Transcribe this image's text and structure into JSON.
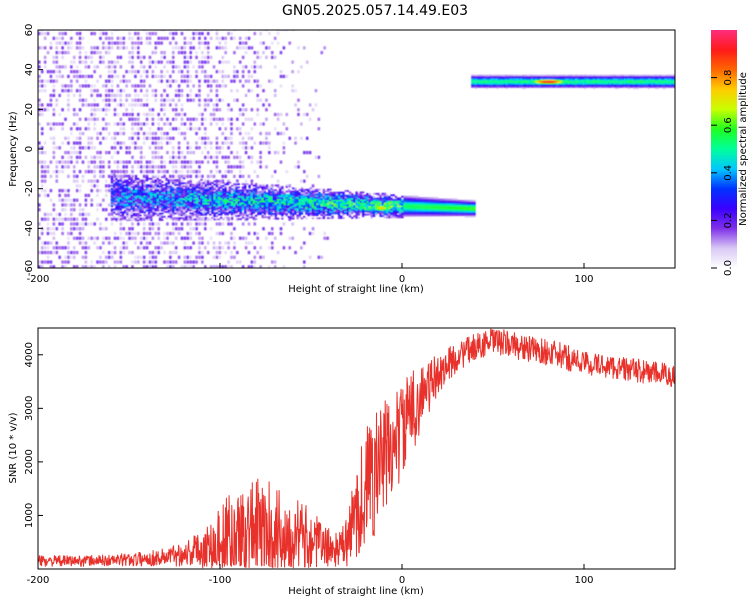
{
  "figure_title": "GN05.2025.057.14.49.E03",
  "colormap": {
    "stops": [
      "#ffffff",
      "#d8c8f4",
      "#7e2fe8",
      "#3a00ff",
      "#0033ff",
      "#00c8ff",
      "#00ff9a",
      "#20ff20",
      "#c8ff00",
      "#ffcc00",
      "#ff6600",
      "#ff1a1a",
      "#ff2d7e"
    ]
  },
  "chart_data": [
    {
      "type": "heatmap",
      "title": "",
      "xlabel": "Height of straight line (km)",
      "ylabel": "Frequency (Hz)",
      "xlim": [
        -200,
        150
      ],
      "ylim": [
        -60,
        60
      ],
      "x_ticks": [
        -200,
        -100,
        0,
        100
      ],
      "y_ticks": [
        -60,
        -40,
        -20,
        0,
        20,
        40,
        60
      ],
      "grid": false,
      "colorbar": {
        "label": "Normalized spectral amplitude",
        "range": [
          0.0,
          1.0
        ],
        "ticks": [
          "0.0",
          "0.2",
          "0.4",
          "0.6",
          "0.8"
        ]
      },
      "features": [
        {
          "description": "diffuse low-amplitude noise",
          "x_range": [
            -200,
            -110
          ],
          "freq_range": [
            -60,
            60
          ],
          "amplitude": 0.12
        },
        {
          "description": "main signal band",
          "x_start": -160,
          "x_end": 40,
          "freq_start": -24,
          "freq_end": -30,
          "amplitude_start": 0.3,
          "amplitude_end": 0.6
        },
        {
          "description": "upper signal band",
          "x_start": 38,
          "x_end": 150,
          "freq": 34,
          "amplitude": 0.55
        },
        {
          "description": "peak amplitude",
          "x": 80,
          "freq": 34,
          "amplitude": 0.95
        },
        {
          "description": "peak amplitude",
          "x": -12,
          "freq": -30,
          "amplitude": 0.85
        }
      ]
    },
    {
      "type": "line",
      "title": "",
      "xlabel": "Height of straight line (km)",
      "ylabel": "SNR (10 * v/v)",
      "xlim": [
        -200,
        150
      ],
      "ylim": [
        0,
        4500
      ],
      "x_ticks": [
        -200,
        -100,
        0,
        100
      ],
      "y_ticks": [
        1000,
        2000,
        3000,
        4000
      ],
      "grid": false,
      "line_color": "#e8312b",
      "series": [
        {
          "x": [
            -200,
            -180,
            -160,
            -140,
            -130,
            -120,
            -110,
            -100,
            -90,
            -80,
            -70,
            -60,
            -50,
            -40,
            -35,
            -30,
            -25,
            -20,
            -15,
            -10,
            -5,
            0,
            5,
            10,
            15,
            20,
            30,
            40,
            50,
            60,
            70,
            80,
            90,
            100,
            110,
            120,
            130,
            140,
            150
          ],
          "values": [
            150,
            150,
            160,
            190,
            230,
            290,
            380,
            520,
            650,
            720,
            690,
            640,
            520,
            400,
            350,
            500,
            1100,
            1500,
            1800,
            2050,
            2300,
            2600,
            2900,
            3200,
            3400,
            3650,
            3950,
            4150,
            4250,
            4200,
            4100,
            4050,
            3950,
            3850,
            3800,
            3750,
            3700,
            3650,
            3600
          ],
          "noise": [
            100,
            100,
            110,
            140,
            170,
            240,
            350,
            700,
            900,
            1000,
            900,
            750,
            600,
            350,
            300,
            500,
            900,
            1200,
            1200,
            1100,
            1000,
            900,
            800,
            650,
            500,
            380,
            280,
            250,
            250,
            250,
            250,
            250,
            250,
            220,
            220,
            220,
            220,
            220,
            220
          ]
        }
      ]
    }
  ]
}
